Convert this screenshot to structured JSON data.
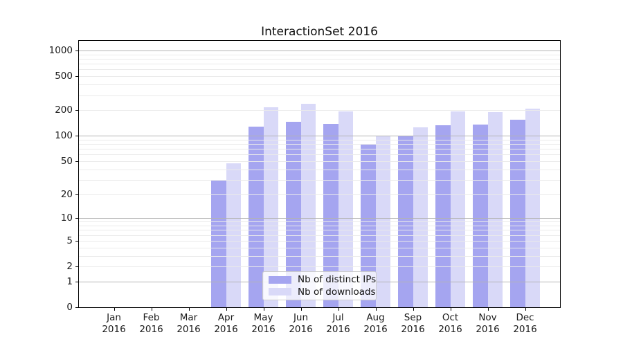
{
  "chart_data": {
    "type": "bar",
    "title": "InteractionSet 2016",
    "categories": [
      "Jan 2016",
      "Feb 2016",
      "Mar 2016",
      "Apr 2016",
      "May 2016",
      "Jun 2016",
      "Jul 2016",
      "Aug 2016",
      "Sep 2016",
      "Oct 2016",
      "Nov 2016",
      "Dec 2016"
    ],
    "series": [
      {
        "name": "Nb of distinct IPs",
        "color": "#a5a5f0",
        "values": [
          0,
          0,
          0,
          30,
          129,
          145,
          138,
          80,
          100,
          133,
          135,
          155
        ]
      },
      {
        "name": "Nb of downloads",
        "color": "#d9d9f8",
        "values": [
          0,
          0,
          0,
          47,
          215,
          237,
          193,
          100,
          126,
          194,
          190,
          207
        ]
      }
    ],
    "xlabel": "",
    "ylabel": "",
    "y_scale": "log1p",
    "y_ticks": [
      0,
      1,
      2,
      5,
      10,
      20,
      50,
      100,
      200,
      500,
      1000
    ],
    "ylim": [
      0,
      1320
    ],
    "grid": "horizontal",
    "grid_major_at_powers_of_ten": true,
    "legend_position": "lower-center-inside"
  },
  "colors": {
    "bar_distinct_ips": "#a5a5f0",
    "bar_downloads": "#d9d9f8",
    "grid_major": "#b3b3b3",
    "grid_minor": "#eaeaea",
    "axis": "#000000",
    "legend_border": "#cccccc"
  }
}
